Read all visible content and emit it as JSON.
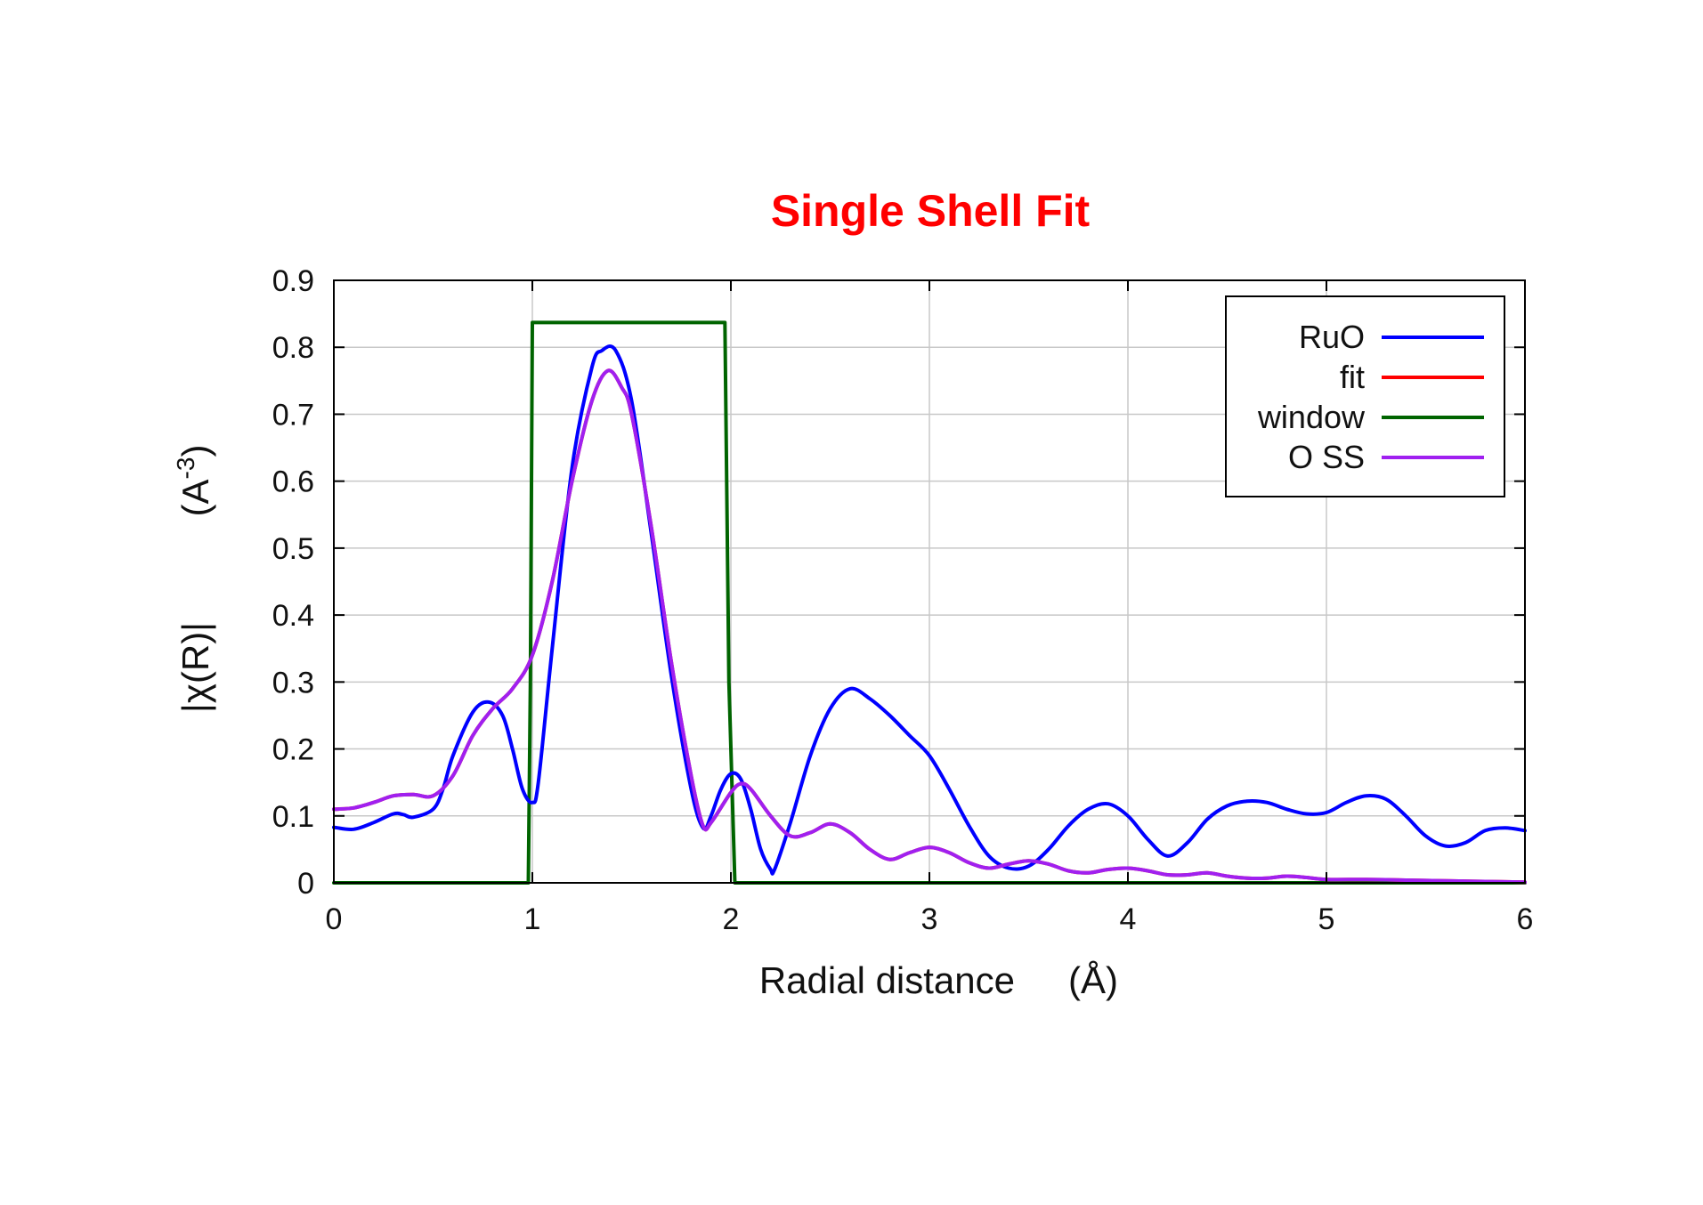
{
  "chart_data": {
    "type": "line",
    "title": "Single Shell Fit",
    "title_color": "#ff0000",
    "xlabel": "Radial distance",
    "xlabel_unit": "(Å)",
    "ylabel": "|χ(R)|",
    "ylabel_unit_base": "(A",
    "ylabel_unit_exp": "-3",
    "ylabel_unit_close": ")",
    "xlim": [
      0,
      6
    ],
    "ylim": [
      0,
      0.9
    ],
    "xticks": [
      0,
      1,
      2,
      3,
      4,
      5,
      6
    ],
    "yticks": [
      0,
      0.1,
      0.2,
      0.3,
      0.4,
      0.5,
      0.6,
      0.7,
      0.8,
      0.9
    ],
    "xtick_labels": [
      "0",
      "1",
      "2",
      "3",
      "4",
      "5",
      "6"
    ],
    "ytick_labels": [
      "0",
      "0.1",
      "0.2",
      "0.3",
      "0.4",
      "0.5",
      "0.6",
      "0.7",
      "0.8",
      "0.9"
    ],
    "grid": true,
    "legend_position": "top-right",
    "series": [
      {
        "name": "RuO",
        "color": "#0000ff",
        "x": [
          0,
          0.1,
          0.2,
          0.3,
          0.35,
          0.4,
          0.5,
          0.55,
          0.6,
          0.7,
          0.78,
          0.85,
          0.9,
          0.95,
          1.0,
          1.03,
          1.1,
          1.2,
          1.3,
          1.35,
          1.42,
          1.5,
          1.6,
          1.7,
          1.8,
          1.86,
          1.9,
          1.95,
          2.0,
          2.05,
          2.1,
          2.15,
          2.2,
          2.22,
          2.3,
          2.4,
          2.5,
          2.6,
          2.7,
          2.8,
          2.9,
          3.0,
          3.1,
          3.2,
          3.3,
          3.4,
          3.5,
          3.6,
          3.7,
          3.8,
          3.9,
          4.0,
          4.1,
          4.2,
          4.3,
          4.4,
          4.5,
          4.6,
          4.7,
          4.8,
          4.9,
          5.0,
          5.1,
          5.2,
          5.3,
          5.4,
          5.5,
          5.6,
          5.7,
          5.8,
          5.9,
          6.0
        ],
        "y": [
          0.083,
          0.08,
          0.09,
          0.103,
          0.102,
          0.098,
          0.11,
          0.14,
          0.19,
          0.255,
          0.27,
          0.25,
          0.2,
          0.14,
          0.12,
          0.15,
          0.35,
          0.62,
          0.77,
          0.795,
          0.795,
          0.72,
          0.52,
          0.31,
          0.14,
          0.082,
          0.1,
          0.14,
          0.163,
          0.155,
          0.11,
          0.05,
          0.02,
          0.02,
          0.09,
          0.19,
          0.26,
          0.29,
          0.275,
          0.25,
          0.22,
          0.19,
          0.14,
          0.085,
          0.04,
          0.022,
          0.025,
          0.05,
          0.085,
          0.11,
          0.118,
          0.1,
          0.065,
          0.04,
          0.06,
          0.095,
          0.115,
          0.122,
          0.12,
          0.11,
          0.103,
          0.105,
          0.12,
          0.13,
          0.125,
          0.1,
          0.07,
          0.055,
          0.06,
          0.078,
          0.082,
          0.078
        ]
      },
      {
        "name": "fit",
        "color": "#ff0000",
        "x": [
          0,
          0.1,
          0.2,
          0.3,
          0.4,
          0.5,
          0.6,
          0.7,
          0.8,
          0.9,
          1.0,
          1.1,
          1.2,
          1.3,
          1.38,
          1.45,
          1.5,
          1.6,
          1.7,
          1.8,
          1.86,
          1.9,
          2.0,
          2.05,
          2.1,
          2.2,
          2.3,
          2.4,
          2.5,
          2.6,
          2.7,
          2.8,
          2.9,
          3.0,
          3.1,
          3.2,
          3.3,
          3.4,
          3.5,
          3.6,
          3.7,
          3.8,
          3.9,
          4.0,
          4.1,
          4.2,
          4.3,
          4.4,
          4.5,
          4.6,
          4.7,
          4.8,
          4.9,
          5.0,
          5.2,
          5.4,
          5.6,
          5.8,
          6.0
        ],
        "y": [
          0.11,
          0.112,
          0.12,
          0.13,
          0.132,
          0.13,
          0.16,
          0.22,
          0.26,
          0.29,
          0.34,
          0.45,
          0.6,
          0.72,
          0.765,
          0.74,
          0.7,
          0.53,
          0.33,
          0.16,
          0.085,
          0.09,
          0.135,
          0.148,
          0.14,
          0.1,
          0.07,
          0.075,
          0.088,
          0.075,
          0.05,
          0.035,
          0.045,
          0.053,
          0.045,
          0.03,
          0.022,
          0.028,
          0.033,
          0.028,
          0.018,
          0.015,
          0.02,
          0.022,
          0.018,
          0.012,
          0.012,
          0.015,
          0.01,
          0.007,
          0.007,
          0.01,
          0.008,
          0.005,
          0.005,
          0.004,
          0.003,
          0.002,
          0.001
        ]
      },
      {
        "name": "window",
        "color": "#006400",
        "x": [
          0,
          0.98,
          0.99,
          1.0,
          1.97,
          1.99,
          2.02,
          6.0
        ],
        "y": [
          0,
          0,
          0.3,
          0.837,
          0.837,
          0.3,
          0,
          0
        ]
      },
      {
        "name": "O SS",
        "color": "#a020f0",
        "x": [
          0,
          0.1,
          0.2,
          0.3,
          0.4,
          0.5,
          0.6,
          0.7,
          0.8,
          0.9,
          1.0,
          1.1,
          1.2,
          1.3,
          1.38,
          1.45,
          1.5,
          1.6,
          1.7,
          1.8,
          1.86,
          1.9,
          2.0,
          2.05,
          2.1,
          2.2,
          2.3,
          2.4,
          2.5,
          2.6,
          2.7,
          2.8,
          2.9,
          3.0,
          3.1,
          3.2,
          3.3,
          3.4,
          3.5,
          3.6,
          3.7,
          3.8,
          3.9,
          4.0,
          4.1,
          4.2,
          4.3,
          4.4,
          4.5,
          4.6,
          4.7,
          4.8,
          4.9,
          5.0,
          5.2,
          5.4,
          5.6,
          5.8,
          6.0
        ],
        "y": [
          0.11,
          0.112,
          0.12,
          0.13,
          0.132,
          0.13,
          0.16,
          0.22,
          0.26,
          0.29,
          0.34,
          0.45,
          0.6,
          0.72,
          0.765,
          0.74,
          0.7,
          0.53,
          0.33,
          0.16,
          0.085,
          0.09,
          0.135,
          0.148,
          0.14,
          0.1,
          0.07,
          0.075,
          0.088,
          0.075,
          0.05,
          0.035,
          0.045,
          0.053,
          0.045,
          0.03,
          0.022,
          0.028,
          0.033,
          0.028,
          0.018,
          0.015,
          0.02,
          0.022,
          0.018,
          0.012,
          0.012,
          0.015,
          0.01,
          0.007,
          0.007,
          0.01,
          0.008,
          0.005,
          0.005,
          0.004,
          0.003,
          0.002,
          0.001
        ]
      }
    ]
  }
}
